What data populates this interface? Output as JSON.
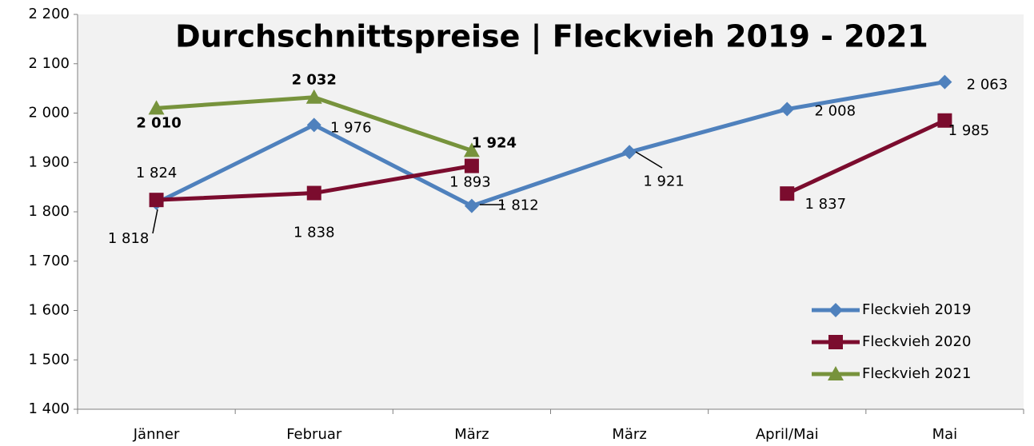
{
  "chart_data": {
    "type": "line",
    "title": "Durchschnittspreise | Fleckvieh  2019 - 2021",
    "categories": [
      "Jänner",
      "Februar",
      "März",
      "März",
      "April/Mai",
      "Mai"
    ],
    "series": [
      {
        "name": "Fleckvieh 2019",
        "color": "#4f81bd",
        "marker": "diamond",
        "values": [
          1818,
          1976,
          1812,
          1921,
          2008,
          2063
        ],
        "value_labels": [
          "1 818",
          "1 976",
          "1 812",
          "1 921",
          "2 008",
          "2 063"
        ]
      },
      {
        "name": "Fleckvieh 2020",
        "color": "#7b0c2e",
        "marker": "square",
        "values": [
          1824,
          1838,
          1893,
          null,
          1837,
          1985
        ],
        "value_labels": [
          "1 824",
          "1 838",
          "1 893",
          null,
          "1 837",
          "1 985"
        ]
      },
      {
        "name": "Fleckvieh 2021",
        "color": "#77933c",
        "marker": "triangle",
        "values": [
          2010,
          2032,
          1924,
          null,
          null,
          null
        ],
        "value_labels": [
          "2 010",
          "2 032",
          "1 924",
          null,
          null,
          null
        ]
      }
    ],
    "ylim": [
      1400,
      2200
    ],
    "yticks": [
      {
        "value": 1400,
        "label": "1 400"
      },
      {
        "value": 1500,
        "label": "1 500"
      },
      {
        "value": 1600,
        "label": "1 600"
      },
      {
        "value": 1700,
        "label": "1 700"
      },
      {
        "value": 1800,
        "label": "1 800"
      },
      {
        "value": 1900,
        "label": "1 900"
      },
      {
        "value": 2000,
        "label": "2 000"
      },
      {
        "value": 2100,
        "label": "2 100"
      },
      {
        "value": 2200,
        "label": "2 200"
      }
    ],
    "grid": false,
    "legend": "lower right"
  }
}
